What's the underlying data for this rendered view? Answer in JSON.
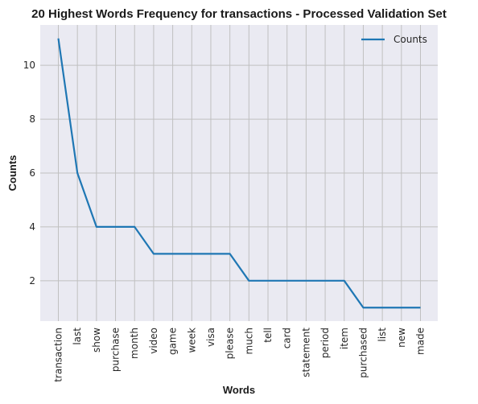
{
  "chart_data": {
    "type": "line",
    "title": "20 Highest Words Frequency for transactions - Processed Validation Set",
    "xlabel": "Words",
    "ylabel": "Counts",
    "categories": [
      "transaction",
      "last",
      "show",
      "purchase",
      "month",
      "video",
      "game",
      "week",
      "visa",
      "please",
      "much",
      "tell",
      "card",
      "statement",
      "period",
      "item",
      "purchased",
      "list",
      "new",
      "made"
    ],
    "series": [
      {
        "name": "Counts",
        "values": [
          11,
          6,
          4,
          4,
          4,
          3,
          3,
          3,
          3,
          3,
          2,
          2,
          2,
          2,
          2,
          2,
          1,
          1,
          1,
          1
        ]
      }
    ],
    "yticks": [
      2,
      4,
      6,
      8,
      10
    ],
    "ylim": [
      0.5,
      11.5
    ],
    "grid": true,
    "legend": "top-right",
    "colors": {
      "line": "#1f77b4",
      "plot_bg": "#eaeaf2",
      "grid": "#c0c0c0"
    }
  }
}
